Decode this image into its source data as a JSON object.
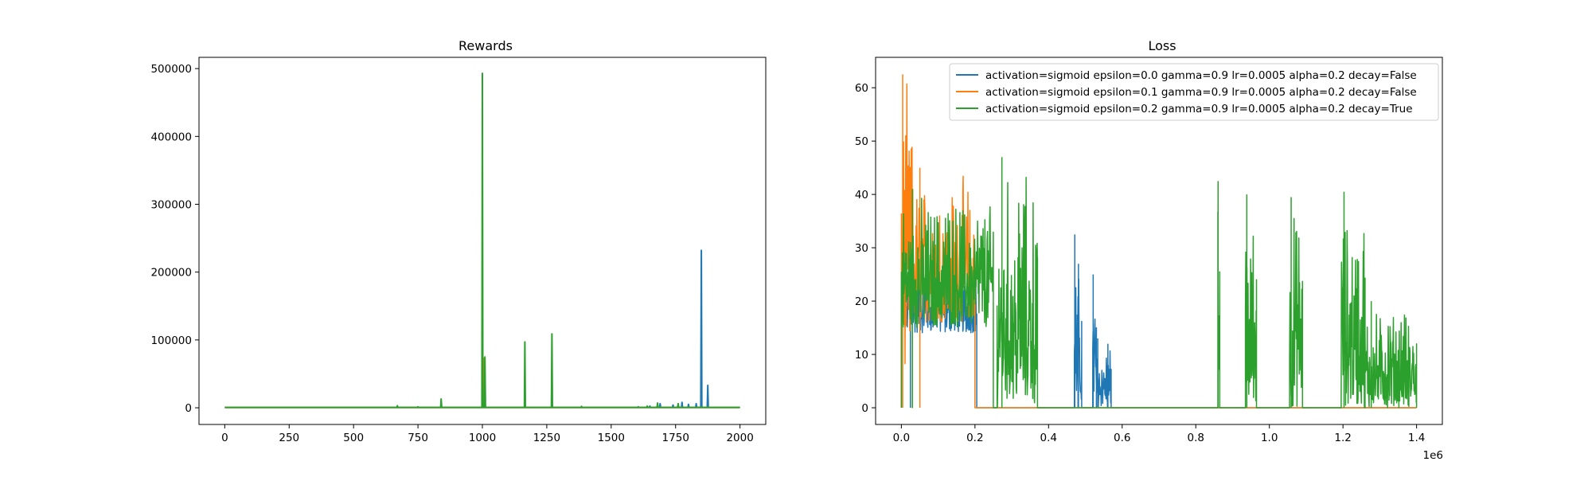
{
  "chart_data": [
    {
      "type": "line",
      "title": "Rewards",
      "xlabel": "",
      "ylabel": "",
      "xlim": [
        -100,
        2100
      ],
      "ylim": [
        -24600,
        516600
      ],
      "xticks": [
        0,
        250,
        500,
        750,
        1000,
        1250,
        1500,
        1750,
        2000
      ],
      "xtick_labels": [
        "0",
        "250",
        "500",
        "750",
        "1000",
        "1250",
        "1500",
        "1750",
        "2000"
      ],
      "yticks": [
        0,
        100000,
        200000,
        300000,
        400000,
        500000
      ],
      "ytick_labels": [
        "0",
        "100000",
        "200000",
        "300000",
        "400000",
        "500000"
      ],
      "grid": false,
      "legend": "none",
      "series": [
        {
          "color": "#1f77b4",
          "baseline": 500,
          "spikes": [
            [
              1605,
              1500
            ],
            [
              1650,
              2500
            ],
            [
              1690,
              6000
            ],
            [
              1740,
              4000
            ],
            [
              1775,
              8000
            ],
            [
              1800,
              5000
            ],
            [
              1830,
              6000
            ],
            [
              1850,
              232000
            ],
            [
              1875,
              33000
            ]
          ]
        },
        {
          "color": "#ff7f0e",
          "baseline": 500,
          "spikes": [
            [
              1005,
              73000
            ]
          ]
        },
        {
          "color": "#2ca02c",
          "baseline": 500,
          "spikes": [
            [
              670,
              3000
            ],
            [
              750,
              1500
            ],
            [
              840,
              13000
            ],
            [
              1000,
              493000
            ],
            [
              1010,
              75000
            ],
            [
              1165,
              97000
            ],
            [
              1270,
              109000
            ],
            [
              1385,
              2000
            ],
            [
              1640,
              2500
            ],
            [
              1680,
              7000
            ],
            [
              1760,
              6000
            ]
          ]
        }
      ]
    },
    {
      "type": "line",
      "title": "Loss",
      "xlabel": "",
      "ylabel": "",
      "xlim": [
        -70000,
        1470000
      ],
      "ylim": [
        -3.13,
        65.7
      ],
      "xticks": [
        0,
        200000,
        400000,
        600000,
        800000,
        1000000,
        1200000,
        1400000
      ],
      "xtick_labels": [
        "0.0",
        "0.2",
        "0.4",
        "0.6",
        "0.8",
        "1.0",
        "1.2",
        "1.4"
      ],
      "x_offset_label": "1e6",
      "yticks": [
        0,
        10,
        20,
        30,
        40,
        50,
        60
      ],
      "ytick_labels": [
        "0",
        "10",
        "20",
        "30",
        "40",
        "50",
        "60"
      ],
      "grid": false,
      "legend": "top-right",
      "series": [
        {
          "name": "activation=sigmoid epsilon=0.0 gamma=0.9 lr=0.0005 alpha=0.2 decay=False",
          "color": "#1f77b4",
          "bands": [
            [
              0,
              205000,
              27,
              14
            ],
            [
              470000,
              480000,
              32.5,
              0
            ],
            [
              480000,
              490000,
              27,
              0
            ],
            [
              520000,
              530000,
              25,
              0
            ],
            [
              530000,
              560000,
              13,
              0
            ],
            [
              560000,
              570000,
              12,
              0
            ]
          ]
        },
        {
          "name": "activation=sigmoid epsilon=0.1 gamma=0.9 lr=0.0005 alpha=0.2 decay=False",
          "color": "#ff7f0e",
          "bands": [
            [
              0,
              30000,
              62.5,
              8
            ],
            [
              30000,
              200000,
              45,
              16
            ]
          ]
        },
        {
          "name": "activation=sigmoid epsilon=0.2 gamma=0.9 lr=0.0005 alpha=0.2 decay=True",
          "color": "#2ca02c",
          "bands": [
            [
              0,
              250000,
              41,
              15
            ],
            [
              260000,
              370000,
              47,
              0
            ],
            [
              860000,
              865000,
              42.5,
              0
            ],
            [
              935000,
              965000,
              40,
              0
            ],
            [
              1055000,
              1090000,
              39.5,
              0
            ],
            [
              1195000,
              1260000,
              40.5,
              0
            ],
            [
              1260000,
              1400000,
              20,
              0
            ]
          ]
        }
      ]
    }
  ]
}
